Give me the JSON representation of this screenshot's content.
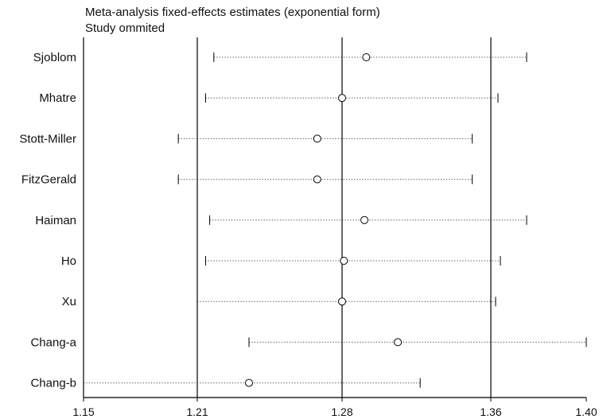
{
  "chart_data": {
    "type": "forest",
    "title": "Meta-analysis fixed-effects estimates (exponential form)",
    "subtitle": "Study ommited",
    "x_ticks": [
      "1.15",
      "1.21",
      "1.28",
      "1.36",
      "1.40"
    ],
    "x_tick_values": [
      1.15,
      1.21,
      1.28,
      1.36,
      1.4
    ],
    "reference_lines": [
      1.21,
      1.28,
      1.36
    ],
    "studies": [
      {
        "name": "Sjoblom",
        "estimate": 1.293,
        "lower": 1.218,
        "upper": 1.375
      },
      {
        "name": "Mhatre",
        "estimate": 1.28,
        "lower": 1.214,
        "upper": 1.363
      },
      {
        "name": "Stott-Miller",
        "estimate": 1.268,
        "lower": 1.2,
        "upper": 1.35
      },
      {
        "name": "FitzGerald",
        "estimate": 1.268,
        "lower": 1.2,
        "upper": 1.35
      },
      {
        "name": "Haiman",
        "estimate": 1.292,
        "lower": 1.216,
        "upper": 1.375
      },
      {
        "name": "Ho",
        "estimate": 1.281,
        "lower": 1.214,
        "upper": 1.364
      },
      {
        "name": "Xu",
        "estimate": 1.28,
        "lower": 1.21,
        "upper": 1.362
      },
      {
        "name": "Chang-a",
        "estimate": 1.31,
        "lower": 1.235,
        "upper": 1.4
      },
      {
        "name": "Chang-b",
        "estimate": 1.235,
        "lower": 1.15,
        "upper": 1.322
      }
    ]
  }
}
